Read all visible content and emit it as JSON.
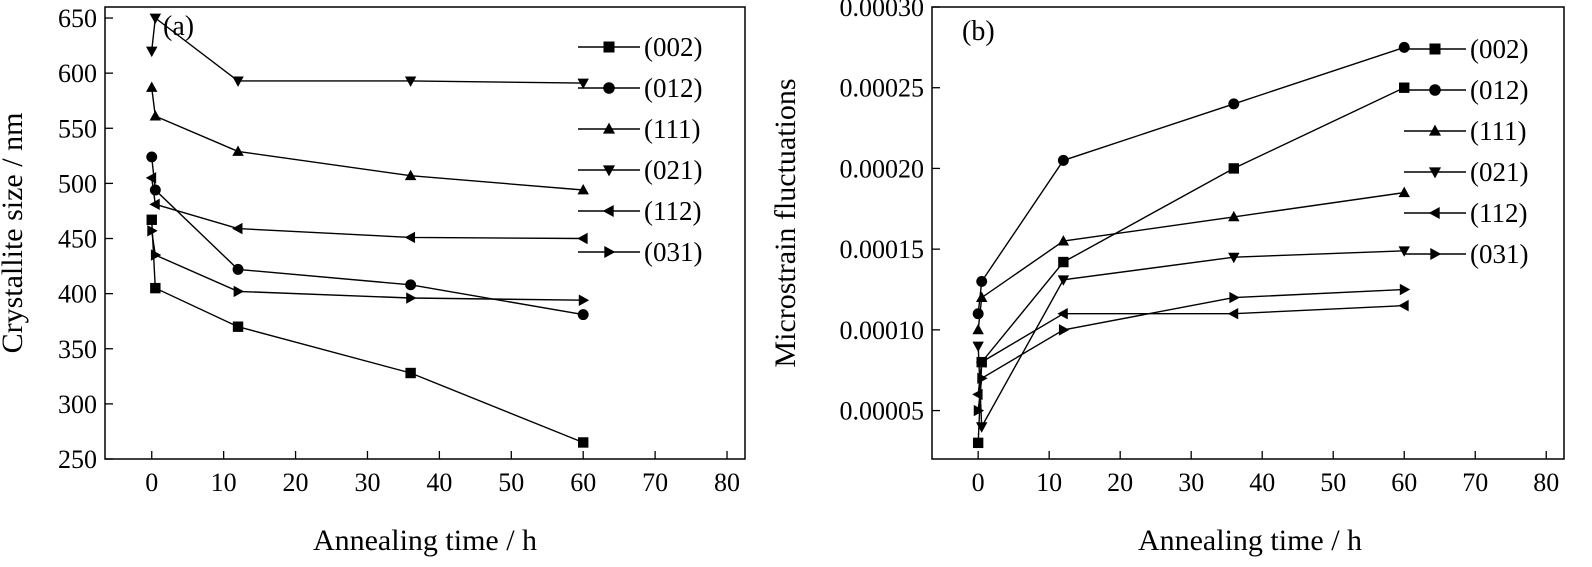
{
  "chart_data": [
    {
      "type": "line",
      "panel_label": "(a)",
      "xlabel": "Annealing time / h",
      "ylabel": "Crystallite size / nm",
      "xlim": [
        -6.5,
        82.5
      ],
      "ylim": [
        250,
        660
      ],
      "xticks": [
        0,
        10,
        20,
        30,
        40,
        50,
        60,
        70,
        80
      ],
      "yticks": [
        250,
        300,
        350,
        400,
        450,
        500,
        550,
        600,
        650
      ],
      "legend_position": "right",
      "series": [
        {
          "name": "(002)",
          "marker": "square",
          "x": [
            0,
            0.5,
            12,
            36,
            60
          ],
          "y": [
            467,
            405,
            370,
            328,
            265
          ]
        },
        {
          "name": "(012)",
          "marker": "circle",
          "x": [
            0,
            0.5,
            12,
            36,
            60
          ],
          "y": [
            524,
            494,
            422,
            408,
            381
          ]
        },
        {
          "name": "(111)",
          "marker": "triangle-up",
          "x": [
            0,
            0.5,
            12,
            36,
            60
          ],
          "y": [
            587,
            561,
            529,
            507,
            494
          ]
        },
        {
          "name": "(021)",
          "marker": "triangle-down",
          "x": [
            0,
            0.5,
            12,
            36,
            60
          ],
          "y": [
            620,
            650,
            593,
            593,
            591
          ]
        },
        {
          "name": "(112)",
          "marker": "triangle-left",
          "x": [
            0,
            0.5,
            12,
            36,
            60
          ],
          "y": [
            505,
            481,
            459,
            451,
            450
          ]
        },
        {
          "name": "(031)",
          "marker": "triangle-right",
          "x": [
            0,
            0.5,
            12,
            36,
            60
          ],
          "y": [
            457,
            435,
            402,
            396,
            394
          ]
        }
      ]
    },
    {
      "type": "line",
      "panel_label": "(b)",
      "xlabel": "Annealing time / h",
      "ylabel": "Microstrain fluctuations",
      "xlim": [
        -6.5,
        82.5
      ],
      "ylim": [
        2e-05,
        0.0003
      ],
      "xticks": [
        0,
        10,
        20,
        30,
        40,
        50,
        60,
        70,
        80
      ],
      "yticks": [
        5e-05,
        0.0001,
        0.00015,
        0.0002,
        0.00025,
        0.0003
      ],
      "ytick_labels": [
        "0.00005",
        "0.00010",
        "0.00015",
        "0.00020",
        "0.00025",
        "0.00030"
      ],
      "legend_position": "right",
      "series": [
        {
          "name": "(002)",
          "marker": "square",
          "x": [
            0,
            0.5,
            12,
            36,
            60
          ],
          "y": [
            3e-05,
            8e-05,
            0.000142,
            0.0002,
            0.00025
          ]
        },
        {
          "name": "(012)",
          "marker": "circle",
          "x": [
            0,
            0.5,
            12,
            36,
            60
          ],
          "y": [
            0.00011,
            0.00013,
            0.000205,
            0.00024,
            0.000275
          ]
        },
        {
          "name": "(111)",
          "marker": "triangle-up",
          "x": [
            0,
            0.5,
            12,
            36,
            60
          ],
          "y": [
            0.0001,
            0.00012,
            0.000155,
            0.00017,
            0.000185
          ]
        },
        {
          "name": "(021)",
          "marker": "triangle-down",
          "x": [
            0,
            0.5,
            12,
            36,
            60
          ],
          "y": [
            9e-05,
            4e-05,
            0.000131,
            0.000145,
            0.000149
          ]
        },
        {
          "name": "(112)",
          "marker": "triangle-left",
          "x": [
            0,
            0.5,
            12,
            36,
            60
          ],
          "y": [
            6e-05,
            8e-05,
            0.00011,
            0.00011,
            0.000115
          ]
        },
        {
          "name": "(031)",
          "marker": "triangle-right",
          "x": [
            0,
            0.5,
            12,
            36,
            60
          ],
          "y": [
            5e-05,
            7e-05,
            0.0001,
            0.00012,
            0.000125
          ]
        }
      ]
    }
  ]
}
